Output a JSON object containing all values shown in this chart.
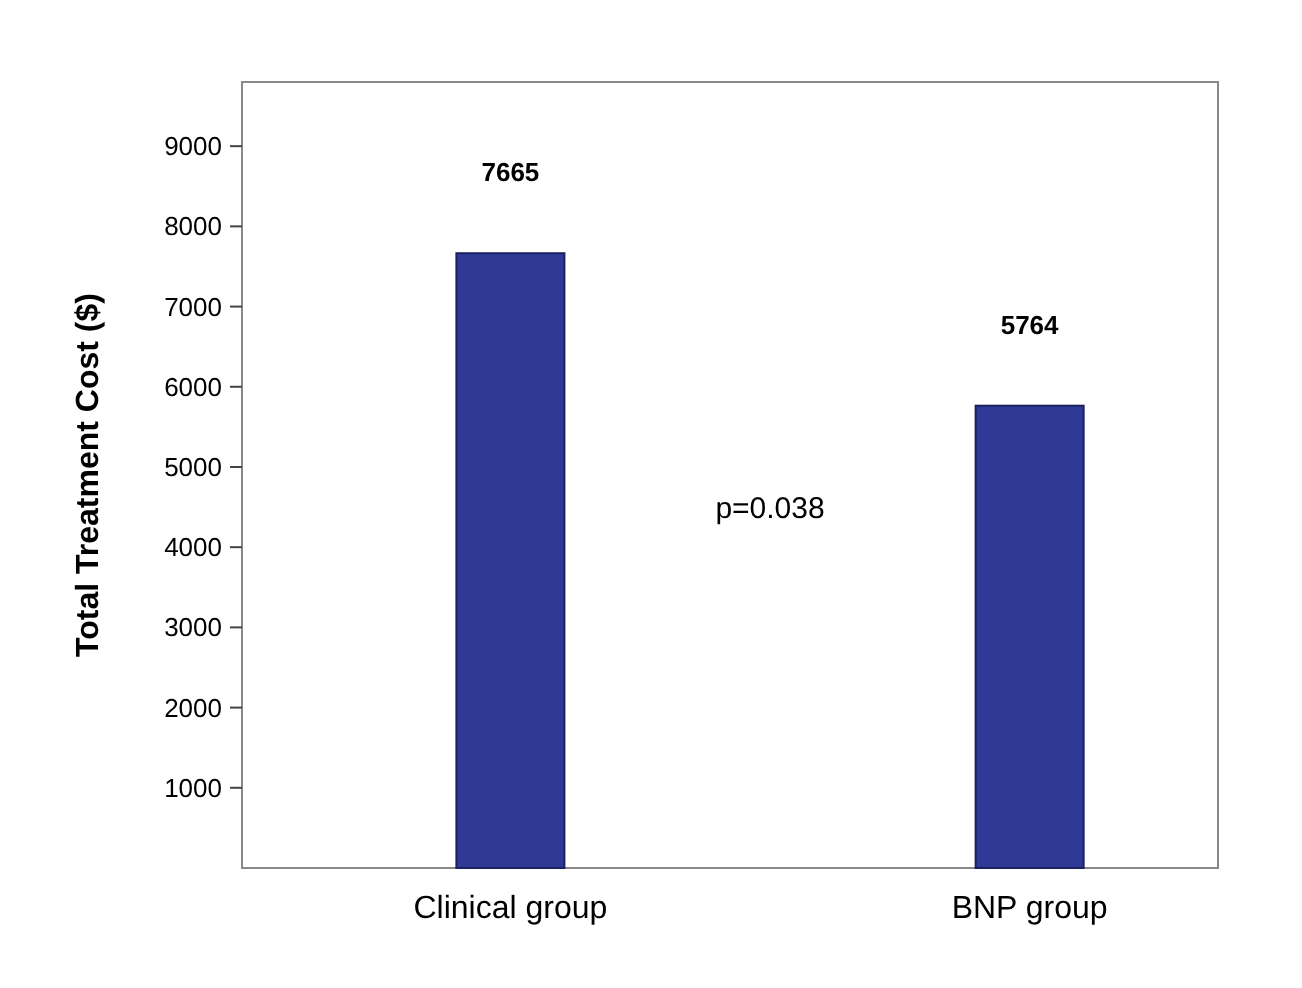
{
  "chart_data": {
    "type": "bar",
    "ylabel": "Total Treatment Cost ($)",
    "categories": [
      "Clinical group",
      "BNP group"
    ],
    "values": [
      7665,
      5764
    ],
    "color": "#2e3a96",
    "ylim": [
      0,
      9800
    ],
    "yticks": [
      1000,
      2000,
      3000,
      4000,
      5000,
      6000,
      7000,
      8000,
      9000
    ],
    "data_labels": true,
    "grid": false,
    "annotations": [
      "p=0.038"
    ]
  }
}
